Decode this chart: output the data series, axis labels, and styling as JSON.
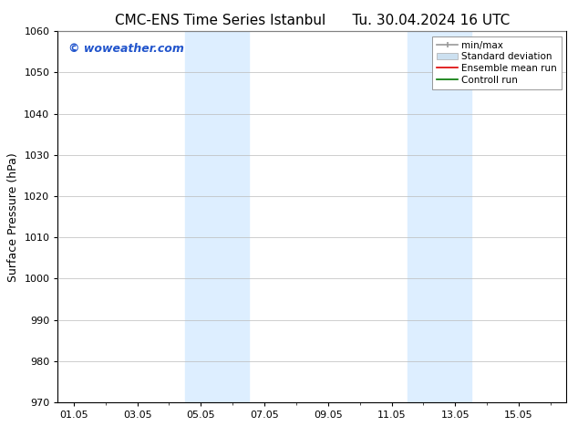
{
  "title_left": "CMC-ENS Time Series Istanbul",
  "title_right": "Tu. 30.04.2024 16 UTC",
  "ylabel": "Surface Pressure (hPa)",
  "ylim": [
    970,
    1060
  ],
  "yticks": [
    970,
    980,
    990,
    1000,
    1010,
    1020,
    1030,
    1040,
    1050,
    1060
  ],
  "xtick_labels": [
    "01.05",
    "03.05",
    "05.05",
    "07.05",
    "09.05",
    "11.05",
    "13.05",
    "15.05"
  ],
  "xtick_positions": [
    0,
    2,
    4,
    6,
    8,
    10,
    12,
    14
  ],
  "xmin": -0.5,
  "xmax": 15.5,
  "shaded_bands": [
    {
      "xmin": 3.5,
      "xmax": 5.5
    },
    {
      "xmin": 10.5,
      "xmax": 12.5
    }
  ],
  "shade_color": "#ddeeff",
  "bg_color": "#ffffff",
  "watermark_text": "© woweather.com",
  "watermark_color": "#2255cc",
  "legend_items": [
    {
      "label": "min/max"
    },
    {
      "label": "Standard deviation"
    },
    {
      "label": "Ensemble mean run"
    },
    {
      "label": "Controll run"
    }
  ],
  "title_fontsize": 11,
  "tick_fontsize": 8,
  "legend_fontsize": 7.5,
  "ylabel_fontsize": 9,
  "grid_color": "#bbbbbb",
  "spine_color": "#000000"
}
